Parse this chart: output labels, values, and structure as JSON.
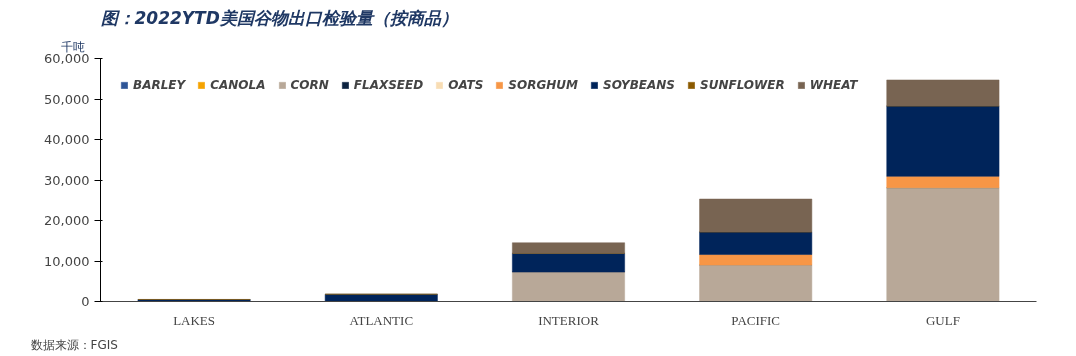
{
  "chart_data": {
    "type": "bar",
    "stacked": true,
    "title": "图：2022YTD美国谷物出口检验量（按商品）",
    "ylabel": "千吨",
    "categories": [
      "LAKES",
      "ATLANTIC",
      "INTERIOR",
      "PACIFIC",
      "GULF"
    ],
    "series": [
      {
        "name": "BARLEY",
        "color": "#2e5597",
        "values": [
          0,
          0,
          0,
          0,
          0
        ]
      },
      {
        "name": "CANOLA",
        "color": "#f5a300",
        "values": [
          0,
          0,
          0,
          0,
          0
        ]
      },
      {
        "name": "CORN",
        "color": "#b8a898",
        "values": [
          null,
          null,
          7300,
          9000,
          28100
        ]
      },
      {
        "name": "FLAXSEED",
        "color": "#0c2340",
        "values": [
          0,
          0,
          0,
          0,
          0
        ]
      },
      {
        "name": "OATS",
        "color": "#f8ddb4",
        "values": [
          0,
          0,
          0,
          0,
          0
        ]
      },
      {
        "name": "SORGHUM",
        "color": "#f79646",
        "values": [
          null,
          null,
          null,
          2600,
          2800
        ]
      },
      {
        "name": "SOYBEANS",
        "color": "#00245a",
        "values": [
          500,
          1800,
          4600,
          5600,
          17400
        ]
      },
      {
        "name": "SUNFLOWER",
        "color": "#8b5a00",
        "values": [
          0,
          0,
          0,
          0,
          0
        ]
      },
      {
        "name": "WHEAT",
        "color": "#786452",
        "values": [
          null,
          null,
          2600,
          8100,
          6400
        ]
      }
    ],
    "ylim": [
      0,
      60000
    ],
    "yticks": [
      {
        "value": 0,
        "label": "0"
      },
      {
        "value": 10000,
        "label": "10,000"
      },
      {
        "value": 20000,
        "label": "20,000"
      },
      {
        "value": 30000,
        "label": "30,000"
      },
      {
        "value": 40000,
        "label": "40,000"
      },
      {
        "value": 50000,
        "label": "50,000"
      },
      {
        "value": 60000,
        "label": "60,000"
      }
    ],
    "legend": "top",
    "grid": false,
    "annotations": [
      "数据来源：FGIS"
    ]
  }
}
